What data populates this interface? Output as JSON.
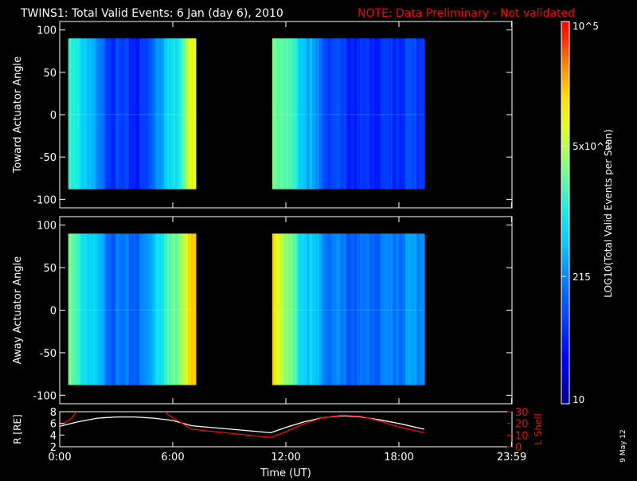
{
  "header": {
    "title": "TWINS1: Total Valid Events:  6 Jan (day   6), 2010",
    "note": "NOTE: Data Preliminary - Not validated"
  },
  "side_date": "9 May 12",
  "colors": {
    "background": "#000000",
    "text": "#ffffff",
    "note": "#ff0000",
    "lshell": "#ff0000",
    "radius": "#ffffff"
  },
  "colorbar": {
    "label": "LOG10(Total Valid Events per Scan)",
    "ticks": [
      {
        "value": 100000,
        "label": "10^5"
      },
      {
        "value": 5000,
        "label": "5x10^3"
      },
      {
        "value": 215,
        "label": "215"
      },
      {
        "value": 10,
        "label": "10"
      }
    ],
    "range": [
      10,
      100000
    ],
    "scale": "log"
  },
  "chart_data": [
    {
      "type": "heatmap",
      "ylabel": "Toward Actuator Angle",
      "xlim": [
        0,
        24
      ],
      "ylim": [
        -110,
        110
      ],
      "yticks": [
        100,
        50,
        0,
        -50,
        -100
      ],
      "angle_range": [
        -88,
        90
      ],
      "data_blocks": [
        {
          "t_start": 0.45,
          "t_end": 7.22,
          "profile": "toward1"
        },
        {
          "t_start": 11.28,
          "t_end": 19.35,
          "profile": "toward2"
        }
      ],
      "time_levels": {
        "toward1": [
          [
            0.45,
            0.52
          ],
          [
            1.0,
            0.48
          ],
          [
            1.6,
            0.42
          ],
          [
            2.0,
            0.3
          ],
          [
            2.6,
            0.24
          ],
          [
            3.2,
            0.2
          ],
          [
            4.2,
            0.18
          ],
          [
            4.7,
            0.22
          ],
          [
            5.1,
            0.36
          ],
          [
            5.6,
            0.42
          ],
          [
            6.1,
            0.48
          ],
          [
            6.4,
            0.55
          ],
          [
            6.7,
            0.68
          ],
          [
            6.9,
            0.72
          ],
          [
            7.22,
            0.72
          ]
        ],
        "toward2": [
          [
            11.28,
            0.62
          ],
          [
            11.9,
            0.6
          ],
          [
            12.4,
            0.52
          ],
          [
            13.0,
            0.42
          ],
          [
            13.6,
            0.32
          ],
          [
            14.2,
            0.25
          ],
          [
            15.0,
            0.2
          ],
          [
            16.0,
            0.18
          ],
          [
            17.0,
            0.19
          ],
          [
            18.0,
            0.21
          ],
          [
            19.35,
            0.23
          ]
        ]
      }
    },
    {
      "type": "heatmap",
      "ylabel": "Away Actuator Angle",
      "xlim": [
        0,
        24
      ],
      "ylim": [
        -110,
        110
      ],
      "yticks": [
        100,
        50,
        0,
        -50,
        -100
      ],
      "angle_range": [
        -88,
        90
      ],
      "data_blocks": [
        {
          "t_start": 0.45,
          "t_end": 7.22,
          "profile": "away1"
        },
        {
          "t_start": 11.28,
          "t_end": 19.35,
          "profile": "away2"
        }
      ],
      "time_levels": {
        "away1": [
          [
            0.45,
            0.6
          ],
          [
            1.0,
            0.52
          ],
          [
            1.6,
            0.46
          ],
          [
            2.2,
            0.36
          ],
          [
            2.8,
            0.3
          ],
          [
            3.5,
            0.28
          ],
          [
            4.3,
            0.3
          ],
          [
            4.8,
            0.36
          ],
          [
            5.2,
            0.5
          ],
          [
            5.7,
            0.54
          ],
          [
            6.2,
            0.62
          ],
          [
            6.5,
            0.7
          ],
          [
            6.8,
            0.78
          ],
          [
            7.22,
            0.82
          ]
        ],
        "away2": [
          [
            11.28,
            0.82
          ],
          [
            11.7,
            0.72
          ],
          [
            12.2,
            0.6
          ],
          [
            12.8,
            0.48
          ],
          [
            13.5,
            0.4
          ],
          [
            14.2,
            0.33
          ],
          [
            15.0,
            0.29
          ],
          [
            16.0,
            0.28
          ],
          [
            17.0,
            0.3
          ],
          [
            18.0,
            0.33
          ],
          [
            19.35,
            0.36
          ]
        ]
      }
    },
    {
      "type": "line",
      "xlabel": "Time (UT)",
      "xlim": [
        0,
        24
      ],
      "xticks": [
        0,
        6,
        12,
        18,
        23.983
      ],
      "xtick_labels": [
        "0:00",
        "6:00",
        "12:00",
        "18:00",
        "23:59"
      ],
      "ylabel_left": "R [RE]",
      "ylim_left": [
        2,
        8
      ],
      "yticks_left": [
        2,
        4,
        6,
        8
      ],
      "ylabel_right": "L Shell",
      "ylim_right": [
        0,
        30
      ],
      "yticks_right": [
        0,
        10,
        20,
        30
      ],
      "series": [
        {
          "name": "R [RE]",
          "axis": "left",
          "x": [
            0.0,
            1.0,
            2.0,
            3.0,
            4.0,
            5.0,
            6.0,
            7.0,
            11.2,
            12.0,
            13.0,
            14.0,
            15.0,
            16.0,
            17.0,
            18.0,
            19.35
          ],
          "y": [
            5.5,
            6.3,
            6.9,
            7.1,
            7.1,
            6.9,
            6.5,
            5.6,
            4.4,
            5.3,
            6.3,
            7.0,
            7.3,
            7.1,
            6.6,
            6.0,
            5.0
          ]
        },
        {
          "name": "L Shell",
          "axis": "right",
          "x": [
            0.0,
            0.6,
            1.1,
            5.3,
            5.8,
            6.3,
            7.0,
            11.2,
            12.0,
            13.0,
            14.0,
            15.0,
            16.0,
            17.0,
            18.0,
            19.35
          ],
          "y": [
            18,
            24,
            34,
            34,
            27,
            22,
            15,
            8,
            13,
            20,
            25,
            27,
            26,
            22,
            17,
            12
          ]
        }
      ]
    }
  ]
}
